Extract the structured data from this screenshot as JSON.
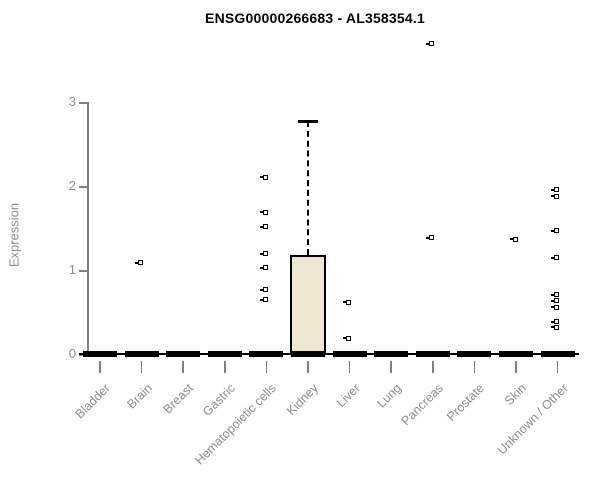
{
  "chart_data": {
    "type": "boxplot",
    "title": "ENSG00000266683 - AL358354.1",
    "ylabel": "Expression",
    "xlabel": "",
    "ylim": [
      0,
      3
    ],
    "yticks": [
      0,
      1,
      2,
      3
    ],
    "grid": false,
    "legend": null,
    "categories": [
      "Bladder",
      "Brain",
      "Breast",
      "Gastric",
      "Hematopoietic cells",
      "Kidney",
      "Liver",
      "Lung",
      "Pancreas",
      "Prostate",
      "Skin",
      "Unknown / Other"
    ],
    "series": [
      {
        "category": "Bladder",
        "median": 0,
        "q1": 0,
        "q3": 0,
        "whisker_low": 0,
        "whisker_high": 0,
        "outliers": []
      },
      {
        "category": "Brain",
        "median": 0,
        "q1": 0,
        "q3": 0,
        "whisker_low": 0,
        "whisker_high": 0,
        "outliers": [
          1.08
        ]
      },
      {
        "category": "Breast",
        "median": 0,
        "q1": 0,
        "q3": 0,
        "whisker_low": 0,
        "whisker_high": 0,
        "outliers": []
      },
      {
        "category": "Gastric",
        "median": 0,
        "q1": 0,
        "q3": 0,
        "whisker_low": 0,
        "whisker_high": 0,
        "outliers": []
      },
      {
        "category": "Hematopoietic cells",
        "median": 0,
        "q1": 0,
        "q3": 0,
        "whisker_low": 0,
        "whisker_high": 0,
        "outliers": [
          2.1,
          1.68,
          1.51,
          1.19,
          1.02,
          0.76,
          0.64
        ]
      },
      {
        "category": "Kidney",
        "median": 0,
        "q1": 0,
        "q3": 1.18,
        "whisker_low": 0,
        "whisker_high": 2.77,
        "outliers": []
      },
      {
        "category": "Liver",
        "median": 0,
        "q1": 0,
        "q3": 0,
        "whisker_low": 0,
        "whisker_high": 0,
        "outliers": [
          0.61,
          0.18
        ]
      },
      {
        "category": "Lung",
        "median": 0,
        "q1": 0,
        "q3": 0,
        "whisker_low": 0,
        "whisker_high": 0,
        "outliers": []
      },
      {
        "category": "Pancreas",
        "median": 0,
        "q1": 0,
        "q3": 0,
        "whisker_low": 0,
        "whisker_high": 0,
        "outliers": [
          3.69,
          1.38
        ]
      },
      {
        "category": "Prostate",
        "median": 0,
        "q1": 0,
        "q3": 0,
        "whisker_low": 0,
        "whisker_high": 0,
        "outliers": []
      },
      {
        "category": "Skin",
        "median": 0,
        "q1": 0,
        "q3": 0,
        "whisker_low": 0,
        "whisker_high": 0,
        "outliers": [
          1.36
        ]
      },
      {
        "category": "Unknown / Other",
        "median": 0,
        "q1": 0,
        "q3": 0,
        "whisker_low": 0,
        "whisker_high": 0,
        "outliers": [
          1.95,
          1.87,
          1.46,
          1.14,
          0.7,
          0.63,
          0.55,
          0.38,
          0.31
        ]
      }
    ],
    "colors": {
      "background": "#FFFFFF",
      "box_fill": "#EDE7CF",
      "box_border": "#000000",
      "median": "#000000",
      "whisker": "#000000",
      "outlier_border": "#000000",
      "outlier_fill": "#FFFFFF",
      "axis": "#7F7F7F",
      "tick_label": "#8C8C8C",
      "title": "#000000"
    }
  }
}
